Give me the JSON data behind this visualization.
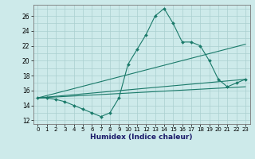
{
  "xlabel": "Humidex (Indice chaleur)",
  "background_color": "#cdeaea",
  "grid_color": "#aacfcf",
  "line_color": "#1a7a6a",
  "xlim": [
    -0.5,
    23.5
  ],
  "ylim": [
    11.5,
    27.5
  ],
  "xticks": [
    0,
    1,
    2,
    3,
    4,
    5,
    6,
    7,
    8,
    9,
    10,
    11,
    12,
    13,
    14,
    15,
    16,
    17,
    18,
    19,
    20,
    21,
    22,
    23
  ],
  "yticks": [
    12,
    14,
    16,
    18,
    20,
    22,
    24,
    26
  ],
  "main_series": {
    "x": [
      0,
      1,
      2,
      3,
      4,
      5,
      6,
      7,
      8,
      9,
      10,
      11,
      12,
      13,
      14,
      15,
      16,
      17,
      18,
      19,
      20,
      21,
      22,
      23
    ],
    "y": [
      15.0,
      15.0,
      14.8,
      14.5,
      14.0,
      13.5,
      13.0,
      12.5,
      13.0,
      15.0,
      19.5,
      21.5,
      23.5,
      26.0,
      27.0,
      25.0,
      22.5,
      22.5,
      22.0,
      20.0,
      17.5,
      16.5,
      17.0,
      17.5
    ]
  },
  "envelope_lines": [
    {
      "x": [
        0,
        23
      ],
      "y": [
        15.0,
        22.2
      ]
    },
    {
      "x": [
        0,
        23
      ],
      "y": [
        15.0,
        17.5
      ]
    },
    {
      "x": [
        0,
        23
      ],
      "y": [
        15.0,
        16.5
      ]
    }
  ]
}
